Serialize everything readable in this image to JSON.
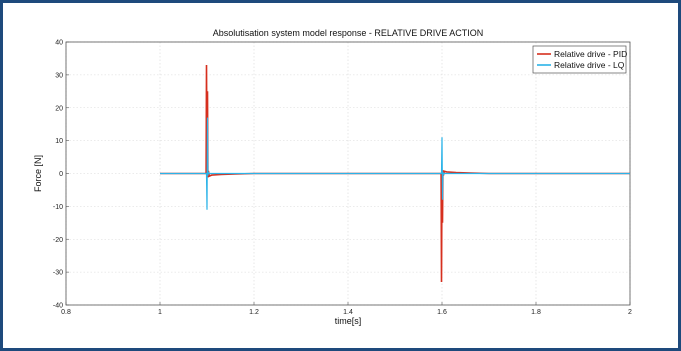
{
  "colors": {
    "frame_border": "#1e4a7c",
    "background": "#ffffff",
    "pid": "#d62f1e",
    "lq": "#2bb3e8",
    "grid": "#d8d8d8"
  },
  "chart_data": {
    "type": "line",
    "title": "Absolutisation system model response - RELATIVE DRIVE ACTION",
    "xlabel": "time[s]",
    "ylabel": "Force [N]",
    "xlim": [
      0.8,
      2.0
    ],
    "ylim": [
      -40,
      40
    ],
    "xticks": [
      0.8,
      1.0,
      1.2,
      1.4,
      1.6,
      1.8,
      2.0
    ],
    "xtick_labels": [
      "0.8",
      "1",
      "1.2",
      "1.4",
      "1.6",
      "1.8",
      "2"
    ],
    "yticks": [
      -40,
      -30,
      -20,
      -10,
      0,
      10,
      20,
      30,
      40
    ],
    "ytick_labels": [
      "-40",
      "-30",
      "-20",
      "-10",
      "0",
      "10",
      "20",
      "30",
      "40"
    ],
    "grid": "dotted",
    "legend_position": "top-right",
    "series": [
      {
        "name": "Relative drive - PID",
        "color": "#d62f1e",
        "x": [
          1.0,
          1.098,
          1.099,
          1.1,
          1.101,
          1.102,
          1.103,
          1.105,
          1.11,
          1.13,
          1.16,
          1.2,
          1.598,
          1.599,
          1.6,
          1.601,
          1.602,
          1.603,
          1.605,
          1.61,
          1.63,
          1.66,
          1.7,
          2.0
        ],
        "y": [
          0,
          0,
          33,
          0,
          25,
          -1.2,
          0.8,
          -0.8,
          -0.5,
          -0.3,
          -0.15,
          0,
          0,
          -33,
          0,
          -15,
          1.0,
          -0.6,
          0.7,
          0.5,
          0.3,
          0.15,
          0,
          0
        ]
      },
      {
        "name": "Relative drive - LQ",
        "color": "#2bb3e8",
        "x": [
          1.0,
          1.099,
          1.1,
          1.101,
          1.102,
          1.103,
          1.105,
          1.2,
          1.599,
          1.6,
          1.601,
          1.602,
          1.603,
          1.605,
          2.0
        ],
        "y": [
          0,
          0,
          -11,
          17,
          -0.6,
          0.3,
          0,
          0,
          0,
          11,
          -8,
          0.5,
          -0.3,
          0,
          0
        ]
      }
    ]
  }
}
